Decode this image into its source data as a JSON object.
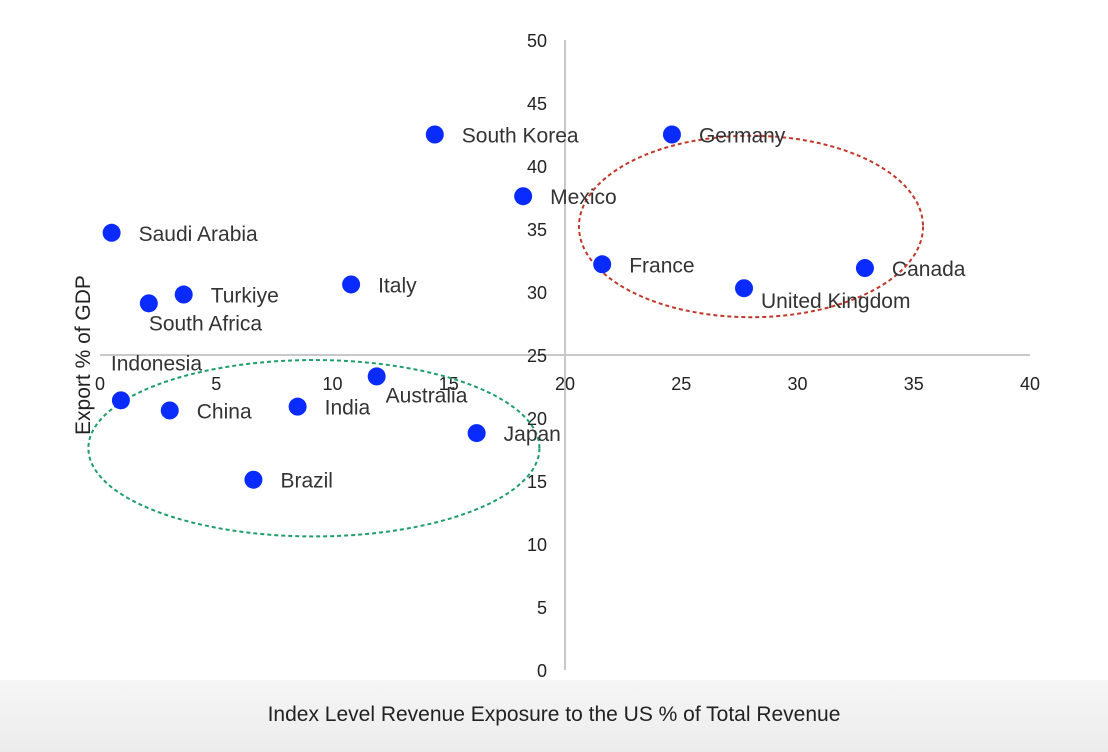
{
  "chart_data": {
    "type": "scatter",
    "xlabel": "Index Level Revenue Exposure to the US % of Total Revenue",
    "ylabel": "Export % of GDP",
    "xlim": [
      0,
      40
    ],
    "ylim": [
      0,
      50
    ],
    "x_ticks": [
      0,
      5,
      10,
      15,
      20,
      25,
      30,
      35,
      40
    ],
    "y_ticks": [
      0,
      5,
      10,
      15,
      20,
      25,
      30,
      35,
      40,
      45,
      50
    ],
    "axis_crossing": {
      "x_axis_at_y": 25,
      "y_axis_at_x": 20
    },
    "grid": false,
    "marker_color": "#0a2bff",
    "points": [
      {
        "label": "South Korea",
        "x": 14.4,
        "y": 42.5
      },
      {
        "label": "Germany",
        "x": 24.6,
        "y": 42.5
      },
      {
        "label": "Mexico",
        "x": 18.2,
        "y": 37.6
      },
      {
        "label": "Saudi Arabia",
        "x": 0.5,
        "y": 34.7
      },
      {
        "label": "France",
        "x": 21.6,
        "y": 32.2
      },
      {
        "label": "Canada",
        "x": 32.9,
        "y": 31.9
      },
      {
        "label": "Turkiye",
        "x": 3.6,
        "y": 29.8
      },
      {
        "label": "Italy",
        "x": 10.8,
        "y": 30.6
      },
      {
        "label": "United Kingdom",
        "x": 27.7,
        "y": 30.3
      },
      {
        "label": "South Africa",
        "x": 2.1,
        "y": 29.1
      },
      {
        "label": "Indonesia",
        "x": 0.9,
        "y": 21.4
      },
      {
        "label": "China",
        "x": 3.0,
        "y": 20.6
      },
      {
        "label": "India",
        "x": 8.5,
        "y": 20.9
      },
      {
        "label": "Australia",
        "x": 11.9,
        "y": 23.3
      },
      {
        "label": "Japan",
        "x": 16.2,
        "y": 18.8
      },
      {
        "label": "Brazil",
        "x": 6.6,
        "y": 15.1
      }
    ],
    "highlights": [
      {
        "name": "developed-markets-group",
        "color": "#c0392b",
        "cx": 28.0,
        "cy": 35.2,
        "rx": 7.4,
        "ry": 7.2
      },
      {
        "name": "emerging-markets-group",
        "color": "#1e9e6a",
        "cx": 9.2,
        "cy": 17.6,
        "rx": 9.7,
        "ry": 7.0
      }
    ]
  }
}
